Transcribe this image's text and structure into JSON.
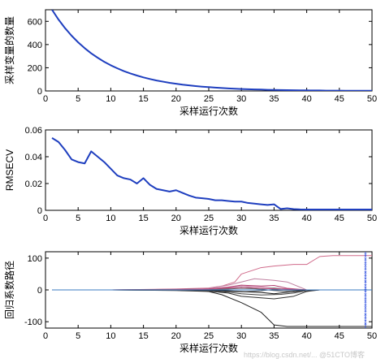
{
  "chart_data": [
    {
      "type": "line",
      "xlabel": "采样运行次数",
      "ylabel": "采样变量的数量",
      "xlim": [
        0,
        50
      ],
      "ylim": [
        0,
        700
      ],
      "xticks": [
        0,
        5,
        10,
        15,
        20,
        25,
        30,
        35,
        40,
        45,
        50
      ],
      "yticks": [
        0,
        200,
        400,
        600
      ],
      "series": [
        {
          "color": "#1f3fbf",
          "x": [
            1,
            2,
            3,
            4,
            5,
            6,
            7,
            8,
            9,
            10,
            11,
            12,
            13,
            14,
            15,
            16,
            17,
            18,
            19,
            20,
            21,
            22,
            23,
            24,
            25,
            26,
            27,
            28,
            29,
            30,
            31,
            32,
            33,
            34,
            35,
            36,
            37,
            38,
            39,
            40,
            41,
            42,
            43,
            44,
            45,
            46,
            47,
            48,
            49,
            50
          ],
          "y": [
            700,
            615,
            541,
            476,
            419,
            369,
            324,
            286,
            251,
            221,
            195,
            171,
            151,
            133,
            117,
            103,
            90,
            80,
            70,
            62,
            54,
            48,
            42,
            37,
            33,
            29,
            25,
            22,
            19,
            17,
            15,
            13,
            12,
            10,
            9,
            8,
            7,
            6,
            5,
            5,
            4,
            4,
            3,
            3,
            3,
            2,
            2,
            2,
            2,
            2
          ]
        }
      ]
    },
    {
      "type": "line",
      "xlabel": "采样运行次数",
      "ylabel": "RMSECV",
      "xlim": [
        0,
        50
      ],
      "ylim": [
        0,
        0.06
      ],
      "xticks": [
        0,
        5,
        10,
        15,
        20,
        25,
        30,
        35,
        40,
        45,
        50
      ],
      "yticks": [
        "0",
        "0.02",
        "0.04",
        "0.06"
      ],
      "series": [
        {
          "color": "#1f3fbf",
          "x": [
            1,
            2,
            3,
            4,
            5,
            6,
            7,
            8,
            9,
            10,
            11,
            12,
            13,
            14,
            15,
            16,
            17,
            18,
            19,
            20,
            21,
            22,
            23,
            24,
            25,
            26,
            27,
            28,
            29,
            30,
            31,
            32,
            33,
            34,
            35,
            36,
            37,
            38,
            39,
            40,
            41,
            42,
            43,
            44,
            45,
            46,
            47,
            48,
            49,
            50
          ],
          "y": [
            0.054,
            0.051,
            0.045,
            0.038,
            0.036,
            0.035,
            0.044,
            0.04,
            0.036,
            0.031,
            0.026,
            0.024,
            0.023,
            0.02,
            0.024,
            0.019,
            0.016,
            0.015,
            0.014,
            0.015,
            0.013,
            0.011,
            0.0095,
            0.009,
            0.0085,
            0.0075,
            0.0075,
            0.007,
            0.0065,
            0.0065,
            0.0055,
            0.005,
            0.0045,
            0.004,
            0.0045,
            0.001,
            0.0015,
            0.0009,
            0.0007,
            0.0006,
            0.0006,
            0.0006,
            0.0006,
            0.0006,
            0.0006,
            0.0006,
            0.0006,
            0.0006,
            0.0006,
            0.0006
          ]
        }
      ]
    },
    {
      "type": "line",
      "xlabel": "采样运行次数",
      "ylabel": "回归系数路径",
      "xlim": [
        0,
        50
      ],
      "ylim": [
        -120,
        120
      ],
      "xticks": [
        0,
        5,
        10,
        15,
        20,
        25,
        30,
        35,
        40,
        45,
        50
      ],
      "yticks": [
        -100,
        0,
        100
      ],
      "marker_line": {
        "x": 49,
        "color": "#3050e0"
      },
      "series": [
        {
          "color": "#d06a8a",
          "x": [
            1,
            10,
            20,
            25,
            27,
            29,
            30,
            33,
            35,
            38,
            40,
            42,
            44,
            46,
            48,
            50
          ],
          "y": [
            0,
            0,
            3,
            6,
            12,
            25,
            50,
            70,
            75,
            80,
            80,
            105,
            108,
            108,
            108,
            108
          ]
        },
        {
          "color": "#c080a0",
          "x": [
            1,
            10,
            20,
            25,
            28,
            30,
            32,
            35,
            37,
            40,
            42,
            44,
            46,
            50
          ],
          "y": [
            0,
            0,
            2,
            5,
            15,
            25,
            35,
            30,
            25,
            0,
            0,
            0,
            0,
            0
          ]
        },
        {
          "color": "#d090b0",
          "x": [
            1,
            10,
            20,
            25,
            28,
            30,
            33,
            35,
            38,
            40,
            42,
            50
          ],
          "y": [
            0,
            0,
            1,
            4,
            8,
            12,
            10,
            5,
            2,
            0,
            0,
            0
          ]
        },
        {
          "color": "#b04070",
          "x": [
            1,
            10,
            20,
            25,
            28,
            30,
            33,
            35,
            37,
            40,
            42,
            50
          ],
          "y": [
            0,
            0,
            2,
            3,
            9,
            15,
            12,
            14,
            5,
            0,
            0,
            0
          ]
        },
        {
          "color": "#202020",
          "x": [
            1,
            10,
            20,
            25,
            27,
            30,
            33,
            35,
            37,
            40,
            42,
            50
          ],
          "y": [
            0,
            0,
            -2,
            -5,
            -15,
            -40,
            -70,
            -110,
            -115,
            -115,
            -115,
            -115
          ]
        },
        {
          "color": "#303030",
          "x": [
            1,
            10,
            20,
            25,
            28,
            30,
            33,
            35,
            38,
            40,
            42,
            50
          ],
          "y": [
            0,
            0,
            -1,
            -4,
            -10,
            -20,
            -25,
            -28,
            -20,
            -5,
            0,
            0
          ]
        },
        {
          "color": "#404040",
          "x": [
            1,
            10,
            20,
            25,
            28,
            30,
            33,
            36,
            38,
            40,
            42,
            50
          ],
          "y": [
            0,
            0,
            -1,
            -3,
            -7,
            -12,
            -16,
            -14,
            -10,
            -3,
            0,
            0
          ]
        },
        {
          "color": "#505050",
          "x": [
            1,
            10,
            20,
            25,
            28,
            30,
            32,
            35,
            38,
            40,
            50
          ],
          "y": [
            0,
            0,
            1,
            3,
            5,
            8,
            4,
            -2,
            -6,
            0,
            0
          ]
        },
        {
          "color": "#606060",
          "x": [
            1,
            10,
            20,
            25,
            28,
            30,
            33,
            35,
            38,
            40,
            50
          ],
          "y": [
            0,
            0,
            -1,
            -2,
            -4,
            -6,
            -3,
            2,
            -2,
            0,
            0
          ]
        },
        {
          "color": "#707070",
          "x": [
            1,
            10,
            20,
            25,
            28,
            30,
            33,
            35,
            37,
            40,
            50
          ],
          "y": [
            0,
            0,
            1,
            2,
            3,
            5,
            3,
            6,
            2,
            0,
            0
          ]
        },
        {
          "color": "#c05080",
          "x": [
            1,
            10,
            20,
            25,
            28,
            31,
            34,
            37,
            40,
            42,
            50
          ],
          "y": [
            0,
            0,
            1,
            3,
            6,
            8,
            4,
            3,
            0,
            0,
            0
          ]
        },
        {
          "color": "#101010",
          "x": [
            1,
            10,
            20,
            25,
            28,
            30,
            33,
            35,
            38,
            40,
            50
          ],
          "y": [
            0,
            0,
            0,
            -1,
            -3,
            -5,
            -8,
            -12,
            -5,
            0,
            0
          ]
        },
        {
          "color": "#3a78c0",
          "x": [
            1,
            50
          ],
          "y": [
            0,
            0
          ]
        }
      ]
    }
  ],
  "watermark": "https://blog.csdn.net/...  @51CTO博客"
}
